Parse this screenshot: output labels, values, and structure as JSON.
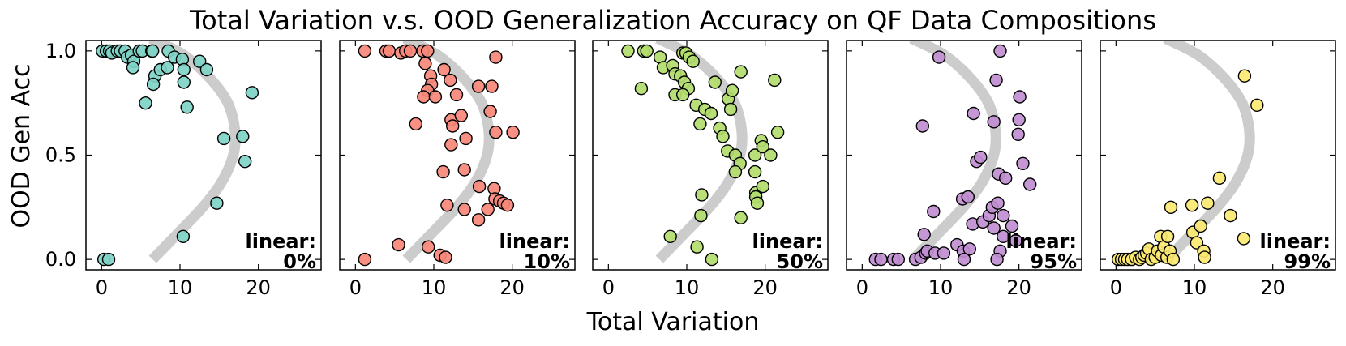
{
  "title": "Total Variation v.s. OOD Generalization Accuracy on QF Data Compositions",
  "xlabel": "Total Variation",
  "ylabel": "OOD Gen Acc",
  "chart_data": [
    {
      "type": "scatter",
      "annotation_line1": "linear:",
      "annotation_line2": "0%",
      "color": "#7fd3c6",
      "xlim": [
        -2,
        28
      ],
      "ylim": [
        -0.05,
        1.05
      ],
      "xticks": [
        0,
        10,
        20
      ],
      "yticks": [
        0.0,
        0.5,
        1.0
      ],
      "xtick_labels": [
        "0",
        "10",
        "20"
      ],
      "ytick_labels": [
        "0.0",
        "0.5",
        "1.0"
      ],
      "trend_curve": {
        "x": [
          6.5,
          9.6,
          12.9,
          15.3,
          16.8,
          17.0,
          16.1,
          13.8,
          10.5,
          6.3
        ],
        "y": [
          0.0,
          0.12,
          0.25,
          0.37,
          0.5,
          0.62,
          0.75,
          0.87,
          0.98,
          1.06
        ]
      },
      "points": [
        [
          0.1,
          1.0
        ],
        [
          0.6,
          1.0
        ],
        [
          1.0,
          1.0
        ],
        [
          1.3,
          0.99
        ],
        [
          2.0,
          1.0
        ],
        [
          2.4,
          1.0
        ],
        [
          3.0,
          1.0
        ],
        [
          3.3,
          0.97
        ],
        [
          3.8,
          0.98
        ],
        [
          4.1,
          0.95
        ],
        [
          4.0,
          0.92
        ],
        [
          4.8,
          1.0
        ],
        [
          5.2,
          1.0
        ],
        [
          6.4,
          1.0
        ],
        [
          6.8,
          0.88
        ],
        [
          6.6,
          0.84
        ],
        [
          6.5,
          1.0
        ],
        [
          5.6,
          0.75
        ],
        [
          7.5,
          0.91
        ],
        [
          8.4,
          0.92
        ],
        [
          8.5,
          1.0
        ],
        [
          9.3,
          0.97
        ],
        [
          10.3,
          0.96
        ],
        [
          10.5,
          0.91
        ],
        [
          10.5,
          0.85
        ],
        [
          10.9,
          0.73
        ],
        [
          12.5,
          0.95
        ],
        [
          13.4,
          0.91
        ],
        [
          14.7,
          0.27
        ],
        [
          10.4,
          0.11
        ],
        [
          15.6,
          0.58
        ],
        [
          18.0,
          0.59
        ],
        [
          18.3,
          0.47
        ],
        [
          19.2,
          0.8
        ],
        [
          0.3,
          0.0
        ],
        [
          0.9,
          0.0
        ]
      ]
    },
    {
      "type": "scatter",
      "annotation_line1": "linear:",
      "annotation_line2": "10%",
      "color": "#f8877a",
      "xlim": [
        -2,
        28
      ],
      "ylim": [
        -0.05,
        1.05
      ],
      "xticks": [
        0,
        10,
        20
      ],
      "yticks": [
        0.0,
        0.5,
        1.0
      ],
      "xtick_labels": [
        "0",
        "10",
        "20"
      ],
      "ytick_labels": [
        "0.0",
        "0.5",
        "1.0"
      ],
      "trend_curve": {
        "x": [
          6.5,
          9.6,
          12.9,
          15.3,
          16.8,
          17.0,
          16.1,
          13.8,
          10.5,
          6.3
        ],
        "y": [
          0.0,
          0.12,
          0.25,
          0.37,
          0.5,
          0.62,
          0.75,
          0.87,
          0.98,
          1.06
        ]
      },
      "points": [
        [
          1.2,
          1.0
        ],
        [
          3.9,
          1.0
        ],
        [
          4.3,
          1.0
        ],
        [
          5.8,
          0.99
        ],
        [
          6.4,
          1.0
        ],
        [
          7.0,
          1.0
        ],
        [
          8.6,
          1.0
        ],
        [
          9.2,
          1.0
        ],
        [
          8.9,
          0.94
        ],
        [
          9.6,
          0.88
        ],
        [
          9.7,
          0.84
        ],
        [
          9.2,
          0.81
        ],
        [
          8.7,
          0.78
        ],
        [
          10.2,
          0.78
        ],
        [
          7.7,
          0.65
        ],
        [
          11.3,
          0.91
        ],
        [
          12.1,
          0.86
        ],
        [
          12.9,
          0.79
        ],
        [
          12.2,
          0.67
        ],
        [
          12.4,
          0.64
        ],
        [
          13.5,
          0.69
        ],
        [
          14.1,
          0.58
        ],
        [
          12.2,
          0.55
        ],
        [
          11.2,
          0.42
        ],
        [
          13.9,
          0.43
        ],
        [
          11.7,
          0.26
        ],
        [
          13.9,
          0.24
        ],
        [
          15.7,
          0.83
        ],
        [
          17.4,
          0.83
        ],
        [
          17.9,
          0.97
        ],
        [
          17.2,
          0.71
        ],
        [
          17.9,
          0.61
        ],
        [
          20.1,
          0.61
        ],
        [
          15.8,
          0.35
        ],
        [
          17.7,
          0.34
        ],
        [
          17.8,
          0.29
        ],
        [
          18.4,
          0.28
        ],
        [
          18.9,
          0.27
        ],
        [
          19.4,
          0.26
        ],
        [
          16.9,
          0.24
        ],
        [
          15.7,
          0.19
        ],
        [
          5.5,
          0.07
        ],
        [
          9.3,
          0.06
        ],
        [
          10.8,
          0.02
        ],
        [
          11.5,
          0.01
        ],
        [
          1.2,
          0.0
        ]
      ]
    },
    {
      "type": "scatter",
      "annotation_line1": "linear:",
      "annotation_line2": "50%",
      "color": "#b2dc6c",
      "xlim": [
        -2,
        28
      ],
      "ylim": [
        -0.05,
        1.05
      ],
      "xticks": [
        0,
        10,
        20
      ],
      "yticks": [
        0.0,
        0.5,
        1.0
      ],
      "xtick_labels": [
        "0",
        "10",
        "20"
      ],
      "ytick_labels": [
        "0.0",
        "0.5",
        "1.0"
      ],
      "trend_curve": {
        "x": [
          6.5,
          9.6,
          12.9,
          15.3,
          16.8,
          17.0,
          16.1,
          13.8,
          10.5,
          6.3
        ],
        "y": [
          0.0,
          0.12,
          0.25,
          0.37,
          0.5,
          0.62,
          0.75,
          0.87,
          0.98,
          1.06
        ]
      },
      "points": [
        [
          2.5,
          1.0
        ],
        [
          4.5,
          1.0
        ],
        [
          4.9,
          1.0
        ],
        [
          6.6,
          0.97
        ],
        [
          7.0,
          0.92
        ],
        [
          8.2,
          0.93
        ],
        [
          8.5,
          0.89
        ],
        [
          9.2,
          0.88
        ],
        [
          9.5,
          0.99
        ],
        [
          9.9,
          0.99
        ],
        [
          10.3,
          0.97
        ],
        [
          10.8,
          0.95
        ],
        [
          9.7,
          0.85
        ],
        [
          10.2,
          0.82
        ],
        [
          8.5,
          0.79
        ],
        [
          9.5,
          0.79
        ],
        [
          4.2,
          0.82
        ],
        [
          11.2,
          0.74
        ],
        [
          12.3,
          0.72
        ],
        [
          13.1,
          0.7
        ],
        [
          13.6,
          0.85
        ],
        [
          15.3,
          0.77
        ],
        [
          15.8,
          0.81
        ],
        [
          15.6,
          0.72
        ],
        [
          16.9,
          0.9
        ],
        [
          11.7,
          0.65
        ],
        [
          14.2,
          0.63
        ],
        [
          14.6,
          0.59
        ],
        [
          15.2,
          0.52
        ],
        [
          16.2,
          0.5
        ],
        [
          16.8,
          0.46
        ],
        [
          16.2,
          0.42
        ],
        [
          11.9,
          0.31
        ],
        [
          11.8,
          0.21
        ],
        [
          16.9,
          0.2
        ],
        [
          18.7,
          0.5
        ],
        [
          19.5,
          0.57
        ],
        [
          19.7,
          0.54
        ],
        [
          20.7,
          0.5
        ],
        [
          21.2,
          0.86
        ],
        [
          21.6,
          0.61
        ],
        [
          18.7,
          0.42
        ],
        [
          18.8,
          0.32
        ],
        [
          18.8,
          0.3
        ],
        [
          19.0,
          0.27
        ],
        [
          19.7,
          0.35
        ],
        [
          7.9,
          0.11
        ],
        [
          11.3,
          0.06
        ],
        [
          13.2,
          0.0
        ]
      ]
    },
    {
      "type": "scatter",
      "annotation_line1": "linear:",
      "annotation_line2": "95%",
      "color": "#c08ed0",
      "xlim": [
        -2,
        28
      ],
      "ylim": [
        -0.05,
        1.05
      ],
      "xticks": [
        0,
        10,
        20
      ],
      "yticks": [
        0.0,
        0.5,
        1.0
      ],
      "xtick_labels": [
        "0",
        "10",
        "20"
      ],
      "ytick_labels": [
        "0.0",
        "0.5",
        "1.0"
      ],
      "trend_curve": {
        "x": [
          6.5,
          9.6,
          12.9,
          15.3,
          16.8,
          17.0,
          16.1,
          13.8,
          10.5,
          6.3
        ],
        "y": [
          0.0,
          0.12,
          0.25,
          0.37,
          0.5,
          0.62,
          0.75,
          0.87,
          0.98,
          1.06
        ]
      },
      "points": [
        [
          1.7,
          0.0
        ],
        [
          2.4,
          0.0
        ],
        [
          4.0,
          0.0
        ],
        [
          4.6,
          0.0
        ],
        [
          6.8,
          0.0
        ],
        [
          7.5,
          0.01
        ],
        [
          8.1,
          0.03
        ],
        [
          8.3,
          0.04
        ],
        [
          9.3,
          0.03
        ],
        [
          10.4,
          0.03
        ],
        [
          12.1,
          0.07
        ],
        [
          12.9,
          0.04
        ],
        [
          13.7,
          0.05
        ],
        [
          13.0,
          0.0
        ],
        [
          17.6,
          0.04
        ],
        [
          17.2,
          0.0
        ],
        [
          7.7,
          0.64
        ],
        [
          7.9,
          0.12
        ],
        [
          9.1,
          0.23
        ],
        [
          9.8,
          0.97
        ],
        [
          12.8,
          0.29
        ],
        [
          13.5,
          0.3
        ],
        [
          14.1,
          0.17
        ],
        [
          14.2,
          0.7
        ],
        [
          14.6,
          0.47
        ],
        [
          15.1,
          0.49
        ],
        [
          15.4,
          0.18
        ],
        [
          16.2,
          0.21
        ],
        [
          16.6,
          0.25
        ],
        [
          16.8,
          0.15
        ],
        [
          16.8,
          0.66
        ],
        [
          17.1,
          0.86
        ],
        [
          17.3,
          0.27
        ],
        [
          17.4,
          0.41
        ],
        [
          17.6,
          1.0
        ],
        [
          18.0,
          0.21
        ],
        [
          18.0,
          0.11
        ],
        [
          18.3,
          0.39
        ],
        [
          19.1,
          0.16
        ],
        [
          19.6,
          0.09
        ],
        [
          19.9,
          0.6
        ],
        [
          20.0,
          0.67
        ],
        [
          20.1,
          0.78
        ],
        [
          20.5,
          0.46
        ],
        [
          21.4,
          0.36
        ]
      ]
    },
    {
      "type": "scatter",
      "annotation_line1": "linear:",
      "annotation_line2": "99%",
      "color": "#fbe871",
      "xlim": [
        -2,
        28
      ],
      "ylim": [
        -0.05,
        1.05
      ],
      "xticks": [
        0,
        10,
        20
      ],
      "yticks": [
        0.0,
        0.5,
        1.0
      ],
      "xtick_labels": [
        "0",
        "10",
        "20"
      ],
      "ytick_labels": [
        "0.0",
        "0.5",
        "1.0"
      ],
      "trend_curve": {
        "x": [
          6.5,
          9.6,
          12.9,
          15.3,
          16.8,
          17.0,
          16.1,
          13.8,
          10.5,
          6.3
        ],
        "y": [
          0.0,
          0.12,
          0.25,
          0.37,
          0.5,
          0.62,
          0.75,
          0.87,
          0.98,
          1.06
        ]
      },
      "points": [
        [
          0.3,
          0.0
        ],
        [
          0.7,
          0.0
        ],
        [
          1.1,
          0.0
        ],
        [
          1.5,
          0.0
        ],
        [
          2.0,
          0.0
        ],
        [
          2.5,
          0.01
        ],
        [
          3.0,
          0.0
        ],
        [
          3.3,
          0.01
        ],
        [
          3.6,
          0.02
        ],
        [
          3.9,
          0.03
        ],
        [
          4.2,
          0.05
        ],
        [
          4.5,
          0.0
        ],
        [
          5.0,
          0.01
        ],
        [
          5.3,
          0.04
        ],
        [
          5.8,
          0.02
        ],
        [
          5.7,
          0.11
        ],
        [
          6.1,
          0.06
        ],
        [
          6.5,
          0.01
        ],
        [
          6.9,
          0.04
        ],
        [
          7.3,
          0.0
        ],
        [
          6.6,
          0.11
        ],
        [
          7.0,
          0.25
        ],
        [
          9.7,
          0.26
        ],
        [
          9.8,
          0.13
        ],
        [
          10.3,
          0.08
        ],
        [
          10.8,
          0.16
        ],
        [
          11.2,
          0.04
        ],
        [
          11.3,
          0.01
        ],
        [
          11.7,
          0.27
        ],
        [
          13.2,
          0.39
        ],
        [
          14.6,
          0.21
        ],
        [
          16.3,
          0.1
        ],
        [
          16.4,
          0.88
        ],
        [
          18.0,
          0.74
        ]
      ]
    }
  ]
}
